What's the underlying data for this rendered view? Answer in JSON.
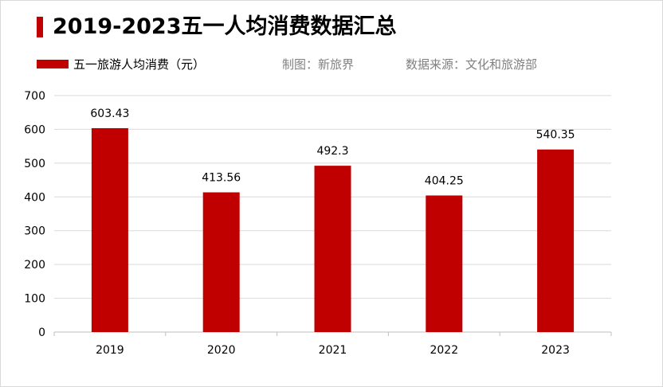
{
  "title": "2019-2023五一人均消费数据汇总",
  "credits": {
    "made_by": "制图：新旅界",
    "source": "数据来源：文化和旅游部"
  },
  "colors": {
    "accent": "#c00000",
    "grid": "#d9d9d9",
    "axis": "#bfbfbf"
  },
  "chart_data": {
    "type": "bar",
    "title": "2019-2023五一人均消费数据汇总",
    "categories": [
      "2019",
      "2020",
      "2021",
      "2022",
      "2023"
    ],
    "series": [
      {
        "name": "五一旅游人均消费（元）",
        "values": [
          603.43,
          413.56,
          492.3,
          404.25,
          540.35
        ],
        "value_labels": [
          "603.43",
          "413.56",
          "492.3",
          "404.25",
          "540.35"
        ]
      }
    ],
    "xlabel": "",
    "ylabel": "",
    "ylim": [
      0,
      700
    ],
    "yticks": [
      0,
      100,
      200,
      300,
      400,
      500,
      600,
      700
    ],
    "grid": true,
    "legend": "top-left"
  }
}
